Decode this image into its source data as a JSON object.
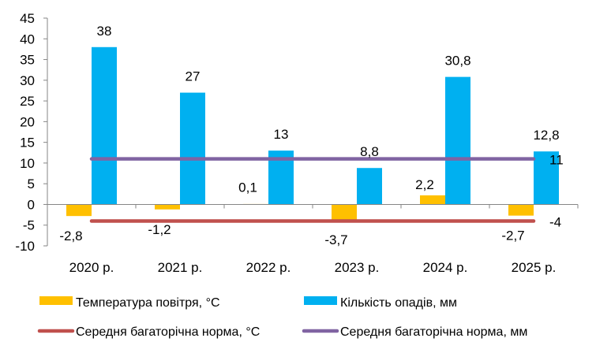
{
  "chart_data": {
    "type": "bar",
    "categories": [
      "2020 р.",
      "2021 р.",
      "2022 р.",
      "2023 р.",
      "2024 р.",
      "2025 р."
    ],
    "ylim": [
      -10,
      45
    ],
    "yticks": [
      -10,
      -5,
      0,
      5,
      10,
      15,
      20,
      25,
      30,
      35,
      40,
      45
    ],
    "grid": false,
    "legend_position": "bottom",
    "series": [
      {
        "name": "Температура повітря, °С",
        "kind": "bar",
        "color": "#FFC000",
        "values": [
          -2.8,
          -1.2,
          0.1,
          -3.7,
          2.2,
          -2.7
        ],
        "labels": [
          "-2,8",
          "-1,2",
          "0,1",
          "-3,7",
          "2,2",
          "-2,7"
        ]
      },
      {
        "name": "Кількість опадів, мм",
        "kind": "bar",
        "color": "#00B0F0",
        "values": [
          38,
          27,
          13,
          8.8,
          30.8,
          12.8
        ],
        "labels": [
          "38",
          "27",
          "13",
          "8,8",
          "30,8",
          "12,8"
        ]
      },
      {
        "name": "Середня багаторічна норма, °С",
        "kind": "line",
        "color": "#C0504D",
        "values": [
          -4,
          -4,
          -4,
          -4,
          -4,
          -4
        ],
        "end_label": "-4"
      },
      {
        "name": "Середня багаторічна норма, мм",
        "kind": "line",
        "color": "#8064A2",
        "values": [
          11,
          11,
          11,
          11,
          11,
          11
        ],
        "end_label": "11"
      }
    ]
  }
}
